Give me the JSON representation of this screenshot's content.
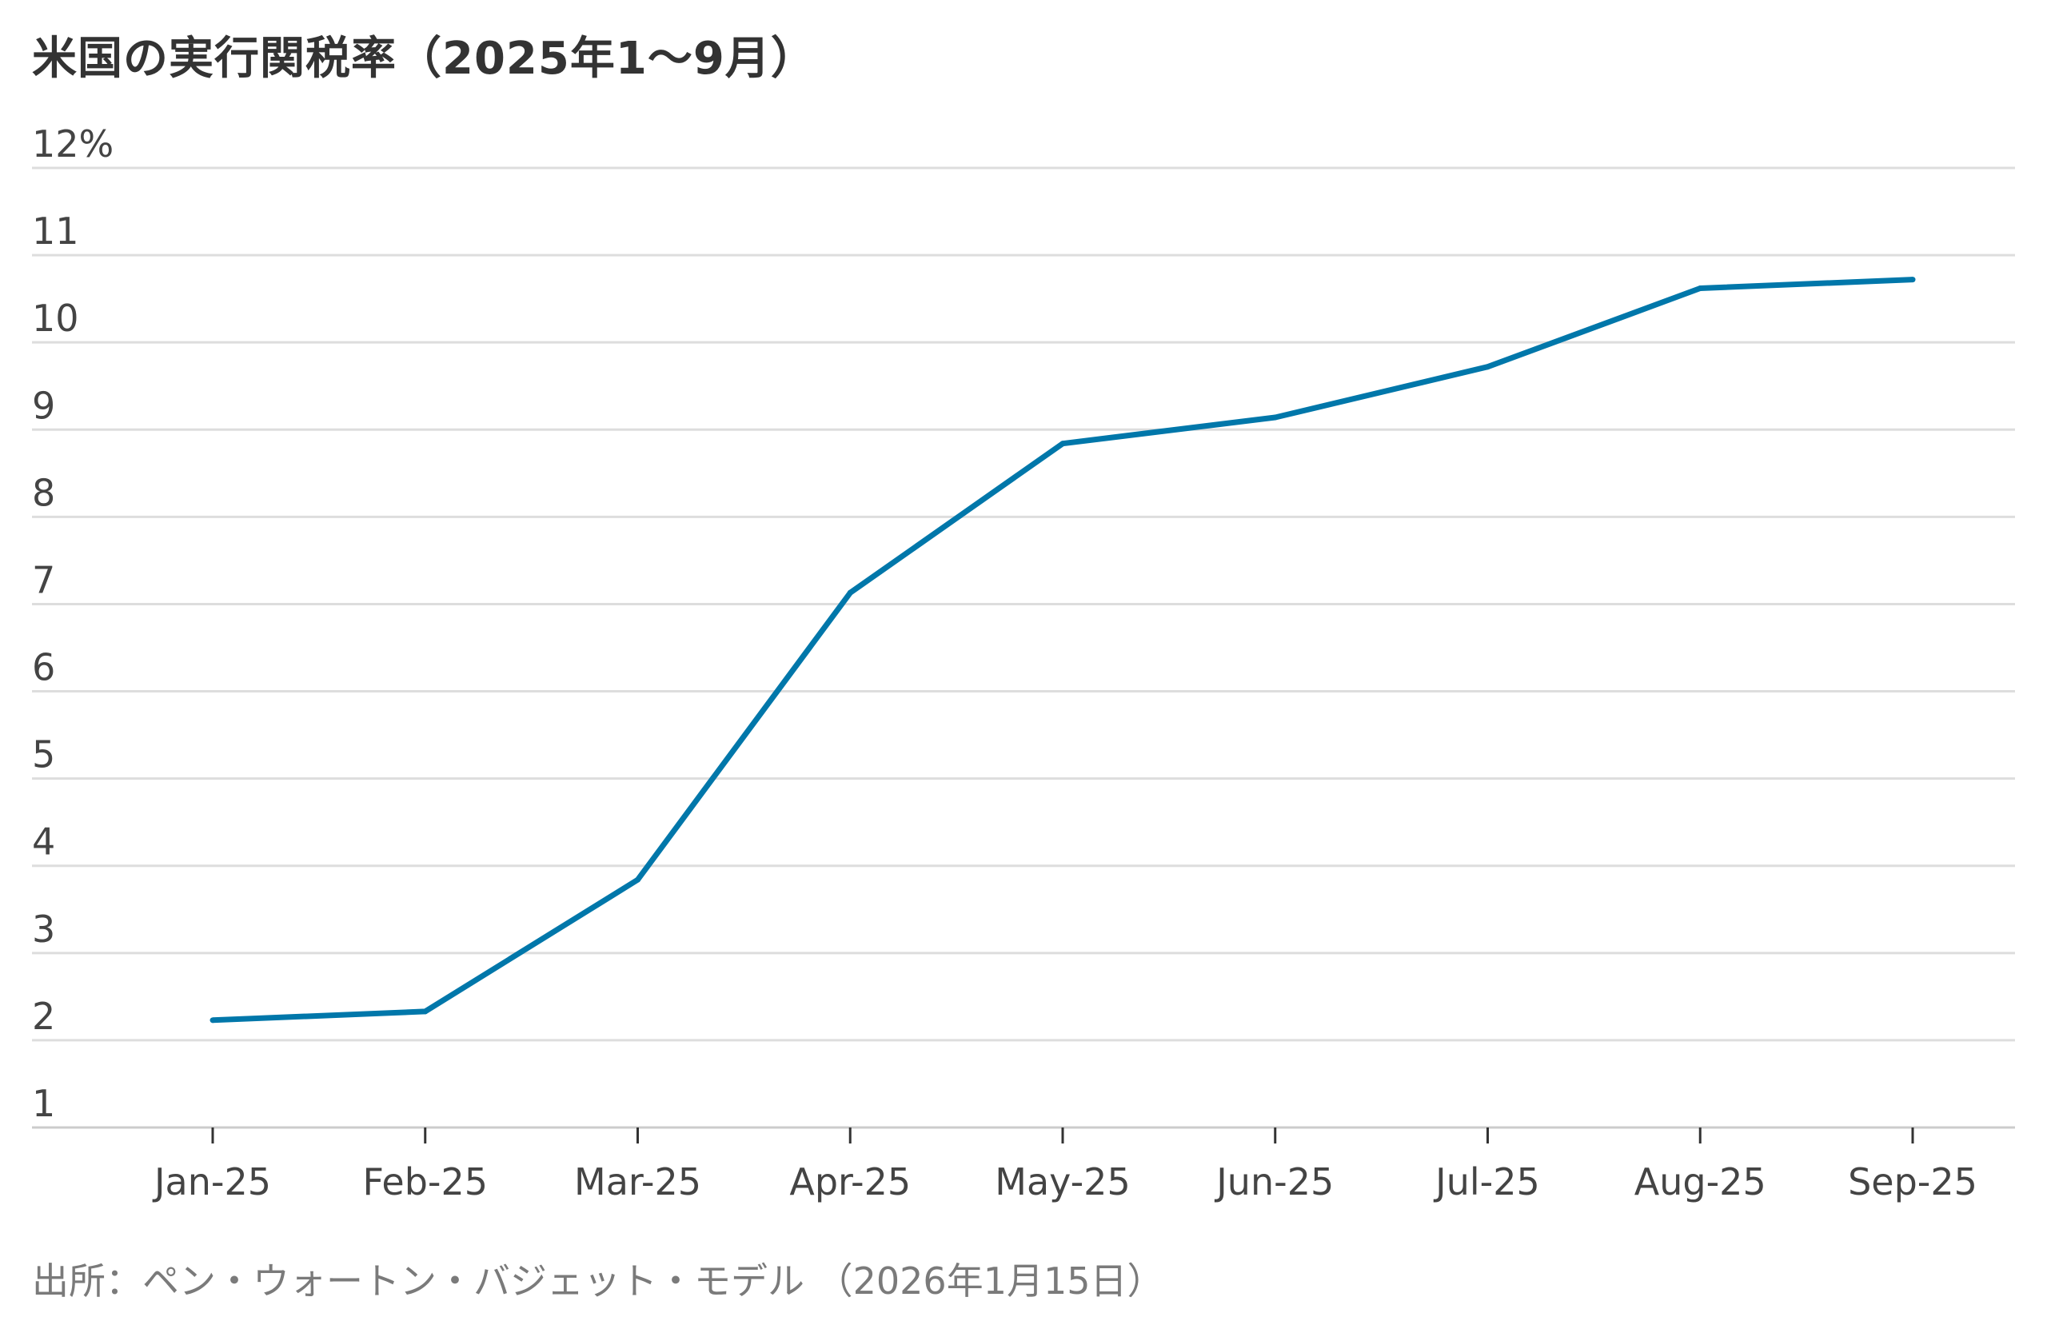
{
  "chart_data": {
    "type": "line",
    "title": "米国の実行関税率（2025年1～9月）",
    "source": "出所：ペン・ウォートン・バジェット・モデル （2026年1月15日）",
    "xlabel": "",
    "ylabel": "",
    "categories": [
      "Jan-25",
      "Feb-25",
      "Mar-25",
      "Apr-25",
      "May-25",
      "Jun-25",
      "Jul-25",
      "Aug-25",
      "Sep-25"
    ],
    "series": [
      {
        "values": [
          2.23,
          2.33,
          3.84,
          7.13,
          8.84,
          9.14,
          9.72,
          10.62,
          10.72
        ]
      }
    ],
    "ylim": [
      1,
      12
    ],
    "yticks": [
      1,
      2,
      3,
      4,
      5,
      6,
      7,
      8,
      9,
      10,
      11,
      12
    ],
    "ytick_labels": [
      "1",
      "2",
      "3",
      "4",
      "5",
      "6",
      "7",
      "8",
      "9",
      "10",
      "11",
      "12%"
    ],
    "grid": true,
    "legend": "none",
    "colors": {
      "line": "#0077aa",
      "grid": "#dddddd",
      "axis": "#cccccc",
      "text": "#333333",
      "source_text": "#7a7a7a"
    }
  }
}
